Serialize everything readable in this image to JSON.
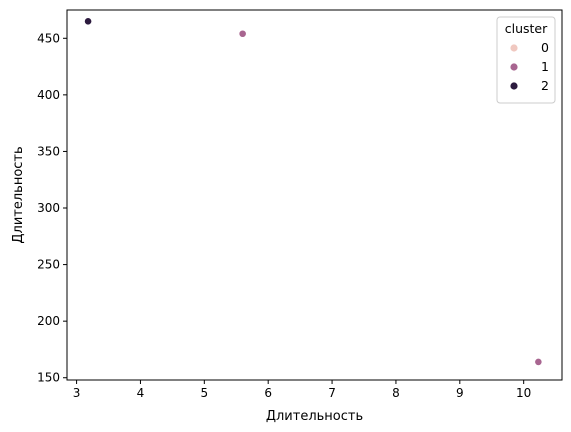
{
  "chart_data": {
    "type": "scatter",
    "xlabel": "Длительность",
    "ylabel": "Длительность",
    "xlim": [
      2.85,
      10.6
    ],
    "ylim": [
      148,
      475
    ],
    "xticks": [
      3,
      4,
      5,
      6,
      7,
      8,
      9,
      10
    ],
    "yticks": [
      150,
      200,
      250,
      300,
      350,
      400,
      450
    ],
    "grid": false,
    "legend": {
      "title": "cluster",
      "placement": "top-right",
      "entries": [
        {
          "label": "0",
          "color": "#f0c8c0"
        },
        {
          "label": "1",
          "color": "#a86590"
        },
        {
          "label": "2",
          "color": "#2c1a3e"
        }
      ]
    },
    "points": [
      {
        "x": 3.18,
        "y": 465,
        "cluster": "2"
      },
      {
        "x": 5.6,
        "y": 454,
        "cluster": "1"
      },
      {
        "x": 10.23,
        "y": 164,
        "cluster": "1"
      }
    ]
  }
}
